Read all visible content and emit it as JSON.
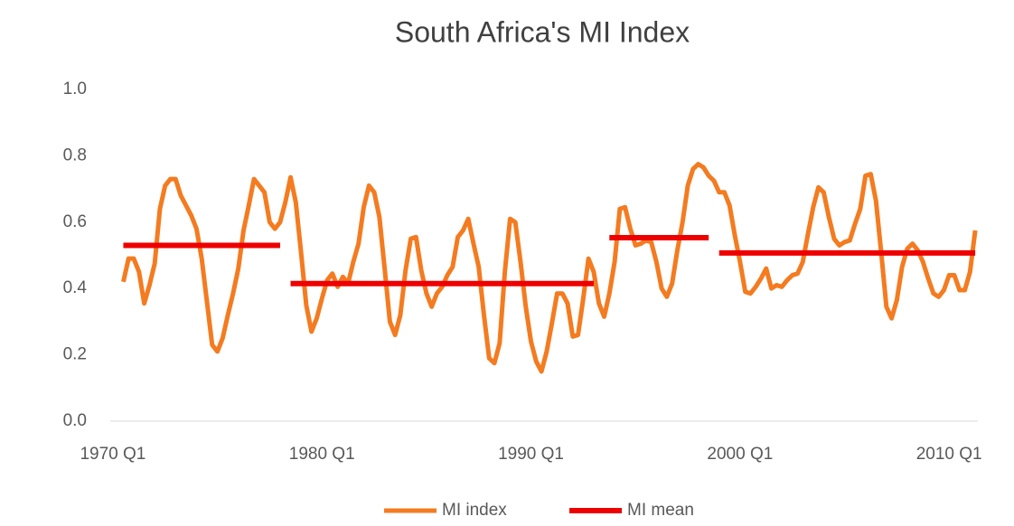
{
  "chart_data": {
    "type": "line",
    "title": "South Africa's MI Index",
    "categories": [
      "1970 Q1",
      null,
      null,
      null,
      null,
      null,
      null,
      null,
      null,
      null,
      null,
      null,
      null,
      null,
      null,
      null,
      null,
      null,
      null,
      null,
      null,
      null,
      null,
      null,
      null,
      null,
      null,
      null,
      null,
      null,
      null,
      null,
      null,
      null,
      null,
      null,
      null,
      null,
      null,
      null,
      "1980 Q1",
      null,
      null,
      null,
      null,
      null,
      null,
      null,
      null,
      null,
      null,
      null,
      null,
      null,
      null,
      null,
      null,
      null,
      null,
      null,
      null,
      null,
      null,
      null,
      null,
      null,
      null,
      null,
      null,
      null,
      null,
      null,
      null,
      null,
      null,
      null,
      null,
      null,
      null,
      null,
      "1990 Q1",
      null,
      null,
      null,
      null,
      null,
      null,
      null,
      null,
      null,
      null,
      null,
      null,
      null,
      null,
      null,
      null,
      null,
      null,
      null,
      null,
      null,
      null,
      null,
      null,
      null,
      null,
      null,
      null,
      null,
      null,
      null,
      null,
      null,
      null,
      null,
      null,
      null,
      null,
      null,
      "2000 Q1",
      null,
      null,
      null,
      null,
      null,
      null,
      null,
      null,
      null,
      null,
      null,
      null,
      null,
      null,
      null,
      null,
      null,
      null,
      null,
      null,
      null,
      null,
      null,
      null,
      null,
      null,
      null,
      null,
      null,
      null,
      null,
      null,
      null,
      null,
      null,
      null,
      null,
      null,
      null,
      "2010 Q1",
      null,
      null,
      null,
      null,
      null
    ],
    "series": [
      {
        "name": "MI index",
        "color": "#f47b20",
        "values": [
          null,
          null,
          0.42,
          0.49,
          0.49,
          0.45,
          0.355,
          0.41,
          0.475,
          0.64,
          0.71,
          0.73,
          0.73,
          0.68,
          0.65,
          0.62,
          0.58,
          0.49,
          0.36,
          0.23,
          0.21,
          0.25,
          0.32,
          0.385,
          0.46,
          0.575,
          0.65,
          0.73,
          0.71,
          0.69,
          0.6,
          0.58,
          0.6,
          0.66,
          0.735,
          0.66,
          0.51,
          0.35,
          0.27,
          0.31,
          0.37,
          0.425,
          0.445,
          0.405,
          0.435,
          0.415,
          0.48,
          0.535,
          0.645,
          0.71,
          0.69,
          0.615,
          0.46,
          0.3,
          0.26,
          0.32,
          0.455,
          0.55,
          0.555,
          0.455,
          0.385,
          0.345,
          0.385,
          0.405,
          0.44,
          0.465,
          0.555,
          0.575,
          0.61,
          0.535,
          0.465,
          0.32,
          0.19,
          0.175,
          0.235,
          0.45,
          0.61,
          0.6,
          0.48,
          0.345,
          0.24,
          0.18,
          0.15,
          0.21,
          0.295,
          0.385,
          0.385,
          0.355,
          0.255,
          0.26,
          0.37,
          0.49,
          0.45,
          0.355,
          0.315,
          0.385,
          0.48,
          0.64,
          0.645,
          0.58,
          0.53,
          0.535,
          0.545,
          0.54,
          0.48,
          0.4,
          0.375,
          0.415,
          0.515,
          0.6,
          0.71,
          0.76,
          0.775,
          0.765,
          0.74,
          0.725,
          0.69,
          0.69,
          0.65,
          0.56,
          0.48,
          0.39,
          0.385,
          0.405,
          0.43,
          0.46,
          0.4,
          0.41,
          0.405,
          0.425,
          0.44,
          0.445,
          0.48,
          0.565,
          0.645,
          0.705,
          0.69,
          0.615,
          0.55,
          0.53,
          0.54,
          0.545,
          0.595,
          0.64,
          0.74,
          0.745,
          0.665,
          0.51,
          0.345,
          0.31,
          0.365,
          0.465,
          0.52,
          0.535,
          0.515,
          0.48,
          0.43,
          0.385,
          0.375,
          0.395,
          0.44,
          0.44,
          0.395,
          0.395,
          0.45,
          0.575
        ]
      },
      {
        "name": "MI mean",
        "color": "#ee0000",
        "values": [
          null,
          null,
          0.53,
          0.53,
          0.53,
          0.53,
          0.53,
          0.53,
          0.53,
          0.53,
          0.53,
          0.53,
          0.53,
          0.53,
          0.53,
          0.53,
          0.53,
          0.53,
          0.53,
          0.53,
          0.53,
          0.53,
          0.53,
          0.53,
          0.53,
          0.53,
          0.53,
          0.53,
          0.53,
          0.53,
          0.53,
          0.53,
          0.53,
          null,
          0.415,
          0.415,
          0.415,
          0.415,
          0.415,
          0.415,
          0.415,
          0.415,
          0.415,
          0.415,
          0.415,
          0.415,
          0.415,
          0.415,
          0.415,
          0.415,
          0.415,
          0.415,
          0.415,
          0.415,
          0.415,
          0.415,
          0.415,
          0.415,
          0.415,
          0.415,
          0.415,
          0.415,
          0.415,
          0.415,
          0.415,
          0.415,
          0.415,
          0.415,
          0.415,
          0.415,
          0.415,
          0.415,
          0.415,
          0.415,
          0.415,
          0.415,
          0.415,
          0.415,
          0.415,
          0.415,
          0.415,
          0.415,
          0.415,
          0.415,
          0.415,
          0.415,
          0.415,
          0.415,
          0.415,
          0.415,
          0.415,
          0.415,
          0.415,
          null,
          null,
          0.553,
          0.553,
          0.553,
          0.553,
          0.553,
          0.553,
          0.553,
          0.553,
          0.553,
          0.553,
          0.553,
          0.553,
          0.553,
          0.553,
          0.553,
          0.553,
          0.553,
          0.553,
          0.553,
          0.553,
          null,
          0.507,
          0.507,
          0.507,
          0.507,
          0.507,
          0.507,
          0.507,
          0.507,
          0.507,
          0.507,
          0.507,
          0.507,
          0.507,
          0.507,
          0.507,
          0.507,
          0.507,
          0.507,
          0.507,
          0.507,
          0.507,
          0.507,
          0.507,
          0.507,
          0.507,
          0.507,
          0.507,
          0.507,
          0.507,
          0.507,
          0.507,
          0.507,
          0.507,
          0.507,
          0.507,
          0.507,
          0.507,
          0.507,
          0.507,
          0.507,
          0.507,
          0.507,
          0.507,
          0.507,
          0.507,
          0.507,
          0.507,
          0.507,
          0.507,
          0.507
        ]
      }
    ],
    "ylim": [
      0,
      1
    ],
    "yticks": [
      {
        "value": 0,
        "label": "0.0"
      },
      0.2,
      0.4,
      0.6,
      0.8,
      {
        "value": 1,
        "label": "1.0"
      }
    ],
    "grid": false,
    "legend": "bottom"
  }
}
